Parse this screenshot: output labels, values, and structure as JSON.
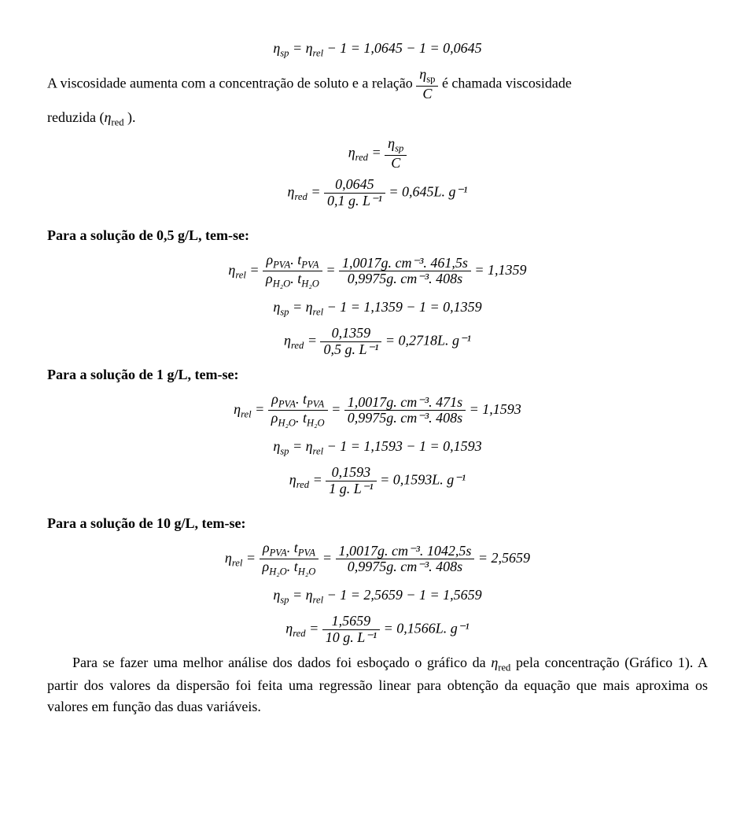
{
  "intro": {
    "eq1": "η_sp = η_rel − 1 = 1,0645 − 1 = 0,0645",
    "line_a": "A viscosidade aumenta com a concentração de soluto e a relação ",
    "line_b": " é chamada viscosidade",
    "line_c": "reduzida (η_red ).",
    "frac_inline_num": "η_sp",
    "frac_inline_den": "C",
    "eq_red_def_lhs": "η_red = ",
    "eq_red_def_num": "η_sp",
    "eq_red_def_den": "C",
    "eq_red_val_lhs": "η_red = ",
    "eq_red_val_num": "0,0645",
    "eq_red_val_den": "0,1 g. L⁻¹",
    "eq_red_val_rhs": " = 0,645L. g⁻¹"
  },
  "s05": {
    "heading": "Para a solução de 0,5 g/L, tem-se:",
    "rel_lhs": "η_rel = ",
    "rel_num1": "ρ_PVA. t_PVA",
    "rel_den1": "ρ_H₂O. t_H₂O",
    "rel_mid": " = ",
    "rel_num2": "1,0017g. cm⁻³. 461,5s",
    "rel_den2": "0,9975g. cm⁻³. 408s",
    "rel_rhs": " = 1,1359",
    "sp": "η_sp = η_rel − 1 = 1,1359 − 1 = 0,1359",
    "red_lhs": "η_red = ",
    "red_num": "0,1359",
    "red_den": "0,5 g. L⁻¹",
    "red_rhs": " = 0,2718L. g⁻¹"
  },
  "s1": {
    "heading": "Para a solução de 1 g/L, tem-se:",
    "rel_lhs": "η_rel = ",
    "rel_num1": "ρ_PVA. t_PVA",
    "rel_den1": "ρ_H₂O. t_H₂O",
    "rel_mid": " = ",
    "rel_num2": "1,0017g. cm⁻³. 471s",
    "rel_den2": "0,9975g. cm⁻³. 408s",
    "rel_rhs": " = 1,1593",
    "sp": "η_sp = η_rel − 1 = 1,1593 − 1 = 0,1593",
    "red_lhs": "η_red = ",
    "red_num": "0,1593",
    "red_den": "1 g. L⁻¹",
    "red_rhs": " = 0,1593L. g⁻¹"
  },
  "s10": {
    "heading": "Para a solução de 10 g/L, tem-se:",
    "rel_lhs": "η_rel = ",
    "rel_num1": "ρ_PVA. t_PVA",
    "rel_den1": "ρ_H₂O. t_H₂O",
    "rel_mid": " = ",
    "rel_num2": "1,0017g. cm⁻³. 1042,5s",
    "rel_den2": "0,9975g. cm⁻³. 408s",
    "rel_rhs": " = 2,5659",
    "sp": "η_sp = η_rel − 1 = 2,5659 − 1 = 1,5659",
    "red_lhs": "η_red = ",
    "red_num": "1,5659",
    "red_den": "10 g. L⁻¹",
    "red_rhs": " = 0,1566L. g⁻¹"
  },
  "closing": {
    "p1a": "Para se fazer uma melhor análise dos dados foi esboçado o gráfico da ",
    "p1_sym": "η_red",
    "p1b": " pela",
    "p2": "concentração (Gráfico 1). A partir dos valores da dispersão foi feita uma regressão linear para obtenção da equação que mais aproxima os valores em função das duas variáveis."
  }
}
